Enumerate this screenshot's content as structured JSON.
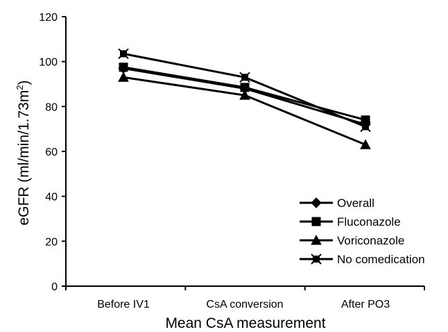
{
  "chart_data": {
    "type": "line",
    "xlabel": "Mean CsA measurement",
    "ylabel_main": "eGFR (ml/min/1.73m",
    "ylabel_sup": "2",
    "ylabel_close": ")",
    "ylim": [
      0,
      120
    ],
    "yticks": [
      0,
      20,
      40,
      60,
      80,
      100,
      120
    ],
    "categories": [
      "Before IV1",
      "CsA conversion",
      "After PO3"
    ],
    "grid": false,
    "legend_position": "bottom-right",
    "series": [
      {
        "name": "Overall",
        "marker": "diamond",
        "values": [
          97,
          88,
          72
        ]
      },
      {
        "name": "Fluconazole",
        "marker": "square",
        "values": [
          97.5,
          88.5,
          74
        ]
      },
      {
        "name": "Voriconazole",
        "marker": "triangle",
        "values": [
          93,
          85,
          63
        ]
      },
      {
        "name": "No comedication",
        "marker": "asterisk-square",
        "values": [
          103.5,
          93,
          71
        ]
      }
    ],
    "line_color": "#000000"
  }
}
